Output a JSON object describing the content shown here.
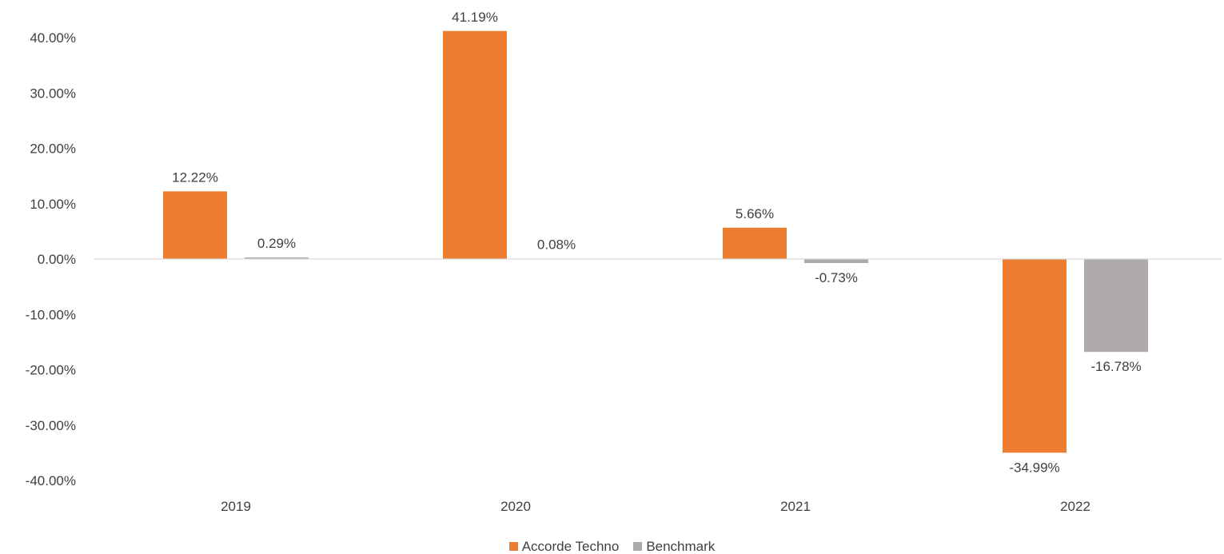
{
  "chart_data": {
    "type": "bar",
    "title": "",
    "xlabel": "",
    "ylabel": "",
    "categories": [
      "2019",
      "2020",
      "2021",
      "2022"
    ],
    "series": [
      {
        "name": "Accorde Techno",
        "color": "#ED7D31",
        "values": [
          12.22,
          41.19,
          5.66,
          -34.99
        ],
        "labels": [
          "12.22%",
          "41.19%",
          "5.66%",
          "-34.99%"
        ]
      },
      {
        "name": "Benchmark",
        "color": "#AEAAAA",
        "values": [
          0.29,
          0.08,
          -0.73,
          -16.78
        ],
        "labels": [
          "0.29%",
          "0.08%",
          "-0.73%",
          "-16.78%"
        ]
      }
    ],
    "ylim": [
      -40,
      40
    ],
    "yticks": [
      40,
      30,
      20,
      10,
      0,
      -10,
      -20,
      -30,
      -40
    ],
    "ytick_labels": [
      "40.00%",
      "30.00%",
      "20.00%",
      "10.00%",
      "0.00%",
      "-10.00%",
      "-20.00%",
      "-30.00%",
      "-40.00%"
    ],
    "grid": false,
    "legend_position": "bottom"
  }
}
